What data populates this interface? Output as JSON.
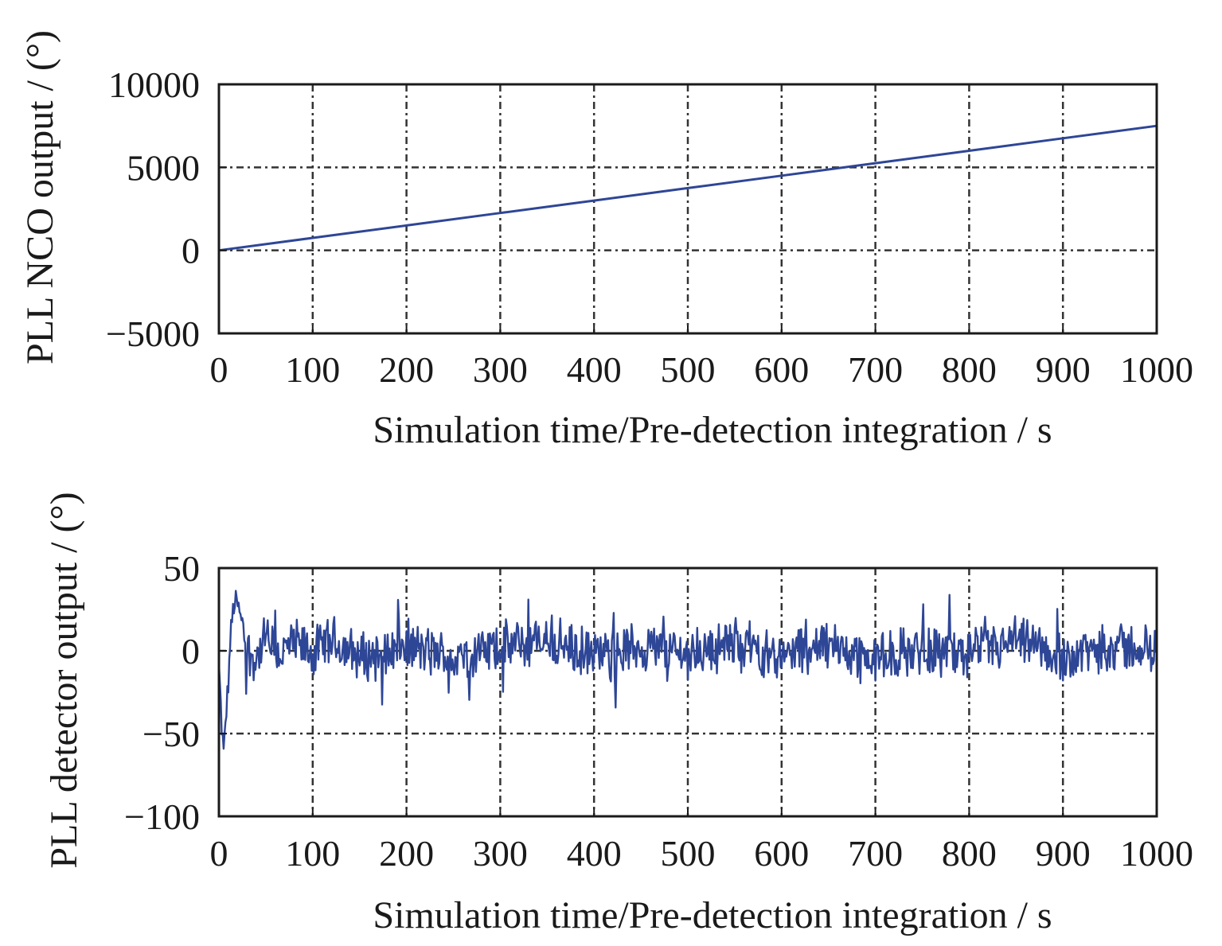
{
  "chart_data": [
    {
      "type": "line",
      "xlabel": "Simulation time/Pre-detection integration / s",
      "ylabel": "PLL NCO output / (°)",
      "xlim": [
        0,
        1000
      ],
      "ylim": [
        -5000,
        10000
      ],
      "xticks": [
        0,
        100,
        200,
        300,
        400,
        500,
        600,
        700,
        800,
        900,
        1000
      ],
      "yticks": [
        -5000,
        0,
        5000,
        10000
      ],
      "xtick_labels": [
        "0",
        "100",
        "200",
        "300",
        "400",
        "500",
        "600",
        "700",
        "800",
        "900",
        "1000"
      ],
      "ytick_labels": [
        "−5000",
        "0",
        "5000",
        "10000"
      ],
      "grid": true,
      "color": "#2e4696",
      "series": [
        {
          "x": [
            0,
            100,
            200,
            300,
            400,
            500,
            600,
            700,
            800,
            900,
            1000
          ],
          "y": [
            0,
            750,
            1500,
            2250,
            3000,
            3750,
            4500,
            5250,
            6000,
            6750,
            7500
          ]
        }
      ]
    },
    {
      "type": "line",
      "xlabel": "Simulation time/Pre-detection integration / s",
      "ylabel": "PLL detector output / (°)",
      "xlim": [
        0,
        1000
      ],
      "ylim": [
        -100,
        50
      ],
      "xticks": [
        0,
        100,
        200,
        300,
        400,
        500,
        600,
        700,
        800,
        900,
        1000
      ],
      "yticks": [
        -100,
        -50,
        0,
        50
      ],
      "xtick_labels": [
        "0",
        "100",
        "200",
        "300",
        "400",
        "500",
        "600",
        "700",
        "800",
        "900",
        "1000"
      ],
      "ytick_labels": [
        "−100",
        "−50",
        "0",
        "50"
      ],
      "grid": true,
      "color": "#2e4696",
      "series": [
        {
          "x": [
            0,
            3,
            5,
            8,
            10,
            12,
            15,
            18,
            20,
            25,
            30,
            40,
            50,
            60,
            80,
            100,
            120,
            150,
            200,
            250,
            300,
            350,
            400,
            450,
            500,
            550,
            600,
            650,
            700,
            750,
            800,
            850,
            900,
            950,
            1000
          ],
          "y": [
            -10,
            -45,
            -62,
            -35,
            -20,
            5,
            25,
            30,
            28,
            15,
            0,
            -5,
            8,
            -3,
            4,
            -2,
            6,
            -4,
            3,
            -5,
            2,
            6,
            -4,
            3,
            -2,
            5,
            -3,
            4,
            -6,
            2,
            -3,
            5,
            -4,
            3,
            0
          ],
          "noise_amplitude": 15
        }
      ]
    }
  ]
}
